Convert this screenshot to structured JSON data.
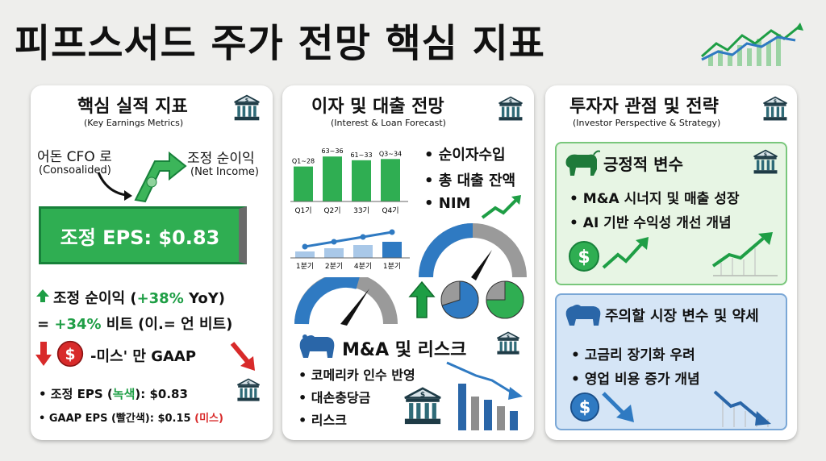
{
  "title": "피프스서드 주가 전망 핵심 지표",
  "colors": {
    "green": "#2fae52",
    "red": "#d82a2a",
    "blue": "#2f7ac2",
    "gray": "#8e8e8e"
  },
  "panel1": {
    "heading": "핵심 실적 지표",
    "subheading": "(Key Earnings Metrics)",
    "left_label": "어돈 CFO 로",
    "left_sub": "(Consoalided)",
    "right_label": "조정 순이익",
    "right_sub": "(Net Income)",
    "eps_box": "조정 EPS: $0.83",
    "line1_prefix": "조정 순이익 (",
    "line1_value": "+38%",
    "line1_suffix": " YoY)",
    "line2_prefix": "= ",
    "line2_value": "+34%",
    "line2_suffix": " 비트 (이.= 언 비트)",
    "miss_text": "-미스' 만 GAAP",
    "bullet1_prefix": "• 조정 EPS (",
    "bullet1_color": "녹색",
    "bullet1_suffix": "): $0.83",
    "bullet2_prefix": "• GAAP EPS (빨간색): $0.15 ",
    "bullet2_tag": "(미스)"
  },
  "panel2": {
    "heading": "이자 및 대출 전망",
    "subheading": "(Interest & Loan Forecast)",
    "bar_chart": {
      "values": [
        28,
        36,
        33,
        34
      ],
      "top_labels": [
        "Q1~28",
        "63~36",
        "61~33",
        "Q3~34"
      ],
      "bottom_labels": [
        "Q1기",
        "Q2기",
        "33기",
        "Q4기"
      ]
    },
    "line_chart": {
      "bottom_labels": [
        "1분기",
        "2분기",
        "4분기",
        "1분기"
      ]
    },
    "bullets": [
      "• 순이자수입",
      "• 총 대출 잔액",
      "• NIM"
    ],
    "risk_heading": "M&A 및 리스크",
    "risk_bullets": [
      "• 코메리카 인수 반영",
      "• 대손충당금",
      "• 리스크"
    ],
    "gauge1_level": 0.72,
    "gauge2_level": 0.6,
    "pie1_fraction": 0.7,
    "pie2_fraction": 0.75
  },
  "panel3": {
    "heading": "투자자 관점 및 전략",
    "subheading": "(Investor Perspective & Strategy)",
    "positive_heading": "긍정적 변수",
    "positive_bullets": [
      "• M&A 시너지 및 매출 성장",
      "• AI 기반 수익성 개선 개념"
    ],
    "negative_heading": "주의할 시장 변수 및 약세",
    "negative_bullets": [
      "• 고금리 장기화 우려",
      "• 영업 비용 증가 개념"
    ]
  },
  "icons": {
    "bank": "bank-icon",
    "bull": "bull-icon",
    "bear": "bear-icon",
    "dollar": "dollar-coin-icon",
    "trend_up": "trend-up-icon",
    "trend_down": "trend-down-icon"
  }
}
